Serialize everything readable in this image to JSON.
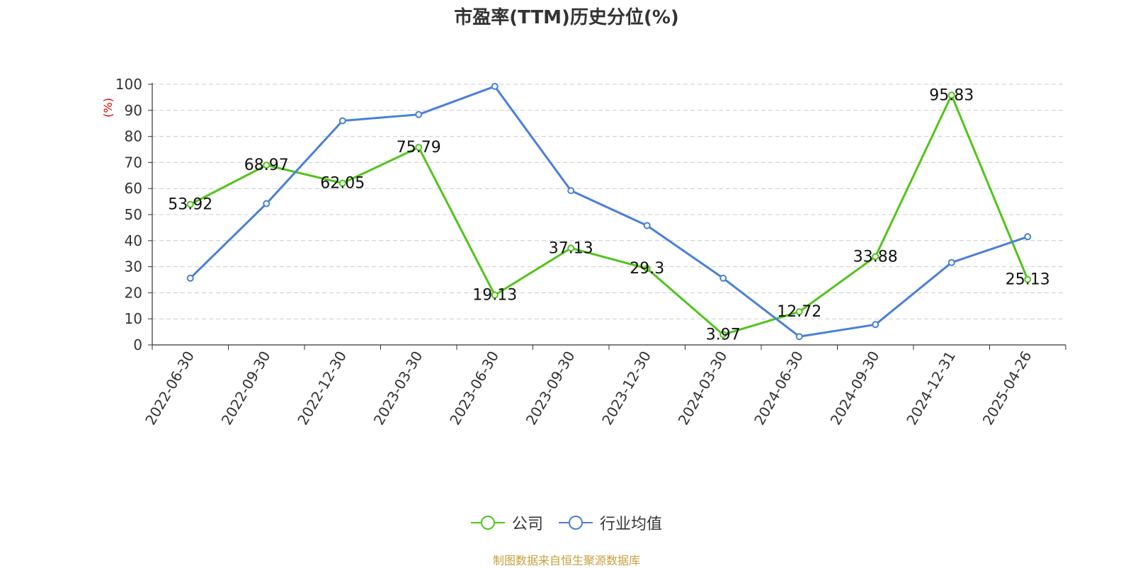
{
  "chart_data": {
    "type": "line",
    "title": "市盈率(TTM)历史分位(%)",
    "ylabel": "(%)",
    "xlabel": "",
    "ylim": [
      0,
      100
    ],
    "yticks": [
      0,
      10,
      20,
      30,
      40,
      50,
      60,
      70,
      80,
      90,
      100
    ],
    "categories": [
      "2022-06-30",
      "2022-09-30",
      "2022-12-30",
      "2023-03-30",
      "2023-06-30",
      "2023-09-30",
      "2023-12-30",
      "2024-03-30",
      "2024-06-30",
      "2024-09-30",
      "2024-12-31",
      "2025-04-26"
    ],
    "grid": true,
    "legend_position": "bottom-center",
    "series": [
      {
        "name": "公司",
        "color": "#52c41a",
        "labeled": true,
        "values": [
          53.92,
          68.97,
          62.05,
          75.79,
          19.13,
          37.13,
          29.3,
          3.97,
          12.72,
          33.88,
          95.83,
          25.13
        ]
      },
      {
        "name": "行业均值",
        "color": "#4a7fd9",
        "labeled": false,
        "values": [
          25.6,
          54.2,
          86.0,
          88.4,
          99.2,
          59.2,
          45.8,
          25.6,
          3.2,
          7.8,
          31.6,
          41.5
        ]
      }
    ],
    "source": "制图数据来自恒生聚源数据库"
  }
}
